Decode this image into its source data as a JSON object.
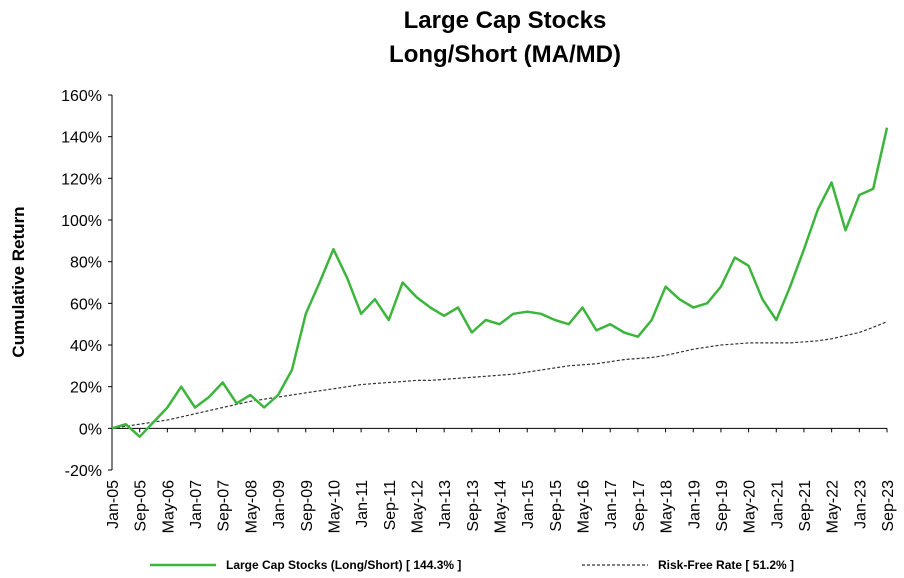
{
  "chart_data": {
    "type": "line",
    "title": "Large Cap Stocks",
    "subtitle": "Long/Short (MA/MD)",
    "y_label": "Cumulative Return",
    "categories": [
      "Jan-05",
      null,
      "Sep-05",
      null,
      "May-06",
      null,
      "Jan-07",
      null,
      "Sep-07",
      null,
      "May-08",
      null,
      "Jan-09",
      null,
      "Sep-09",
      null,
      "May-10",
      null,
      "Jan-11",
      null,
      "Sep-11",
      null,
      "May-12",
      null,
      "Jan-13",
      null,
      "Sep-13",
      null,
      "May-14",
      null,
      "Jan-15",
      null,
      "Sep-15",
      null,
      "May-16",
      null,
      "Jan-17",
      null,
      "Sep-17",
      null,
      "May-18",
      null,
      "Jan-19",
      null,
      "Sep-19",
      null,
      "May-20",
      null,
      "Jan-21",
      null,
      "Sep-21",
      null,
      "May-22",
      null,
      "Jan-23",
      null,
      "Sep-23"
    ],
    "series": [
      {
        "name": "Large Cap Stocks (Long/Short) [ 144.3% ]",
        "color": "#3db53d",
        "dash": false,
        "values": [
          0,
          2,
          -4,
          3,
          10,
          20,
          10,
          15,
          22,
          12,
          16,
          10,
          16,
          28,
          55,
          70,
          86,
          72,
          55,
          62,
          52,
          70,
          63,
          58,
          54,
          58,
          46,
          52,
          50,
          55,
          56,
          55,
          52,
          50,
          58,
          47,
          50,
          46,
          44,
          52,
          68,
          62,
          58,
          60,
          68,
          82,
          78,
          62,
          52,
          68,
          86,
          105,
          118,
          95,
          112,
          115,
          144.3
        ]
      },
      {
        "name": "Risk-Free Rate [ 51.2% ]",
        "color": "#333333",
        "dash": true,
        "values": [
          0,
          1,
          2,
          3,
          4,
          5.5,
          7,
          8.5,
          10,
          11.5,
          13,
          14,
          15,
          16,
          17,
          18,
          19,
          20,
          21,
          21.5,
          22,
          22.5,
          23,
          23,
          23.5,
          24,
          24.5,
          25,
          25.5,
          26,
          27,
          28,
          29,
          30,
          30.5,
          31,
          32,
          33,
          33.5,
          34,
          35,
          36.5,
          38,
          39,
          40,
          40.5,
          41,
          41,
          41,
          41,
          41.5,
          42,
          43,
          44.5,
          46,
          48.5,
          51.2
        ]
      }
    ],
    "ylim": [
      -20,
      160
    ],
    "yticks": [
      {
        "value": -20,
        "label": "-20%"
      },
      {
        "value": 0,
        "label": "0%"
      },
      {
        "value": 20,
        "label": "20%"
      },
      {
        "value": 40,
        "label": "40%"
      },
      {
        "value": 60,
        "label": "60%"
      },
      {
        "value": 80,
        "label": "80%"
      },
      {
        "value": 100,
        "label": "100%"
      },
      {
        "value": 120,
        "label": "120%"
      },
      {
        "value": 140,
        "label": "140%"
      },
      {
        "value": 160,
        "label": "160%"
      }
    ],
    "legend": "bottom"
  }
}
